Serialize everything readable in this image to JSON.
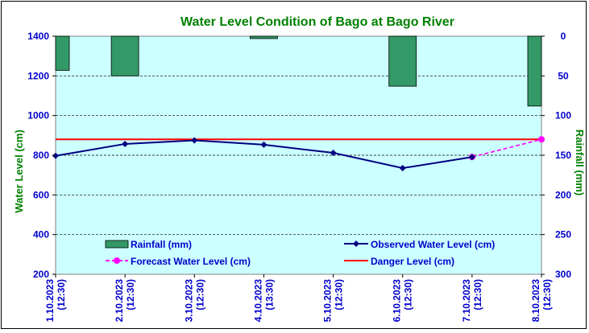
{
  "chart_data": {
    "type": "bar+line",
    "title": "Water Level Condition  of Bago at Bago River",
    "ylabel_left": "Water Level (cm)",
    "ylabel_right": "Rainfall (mm)",
    "ylim_left": [
      200,
      1400
    ],
    "yticks_left": [
      "200",
      "400",
      "600",
      "800",
      "1000",
      "1200",
      "1400"
    ],
    "ylim_right": [
      0,
      300
    ],
    "right_axis_inverted": true,
    "yticks_right": [
      "0",
      "50",
      "100",
      "150",
      "200",
      "250",
      "300"
    ],
    "grid": "horizontal dashed",
    "categories": [
      [
        "1.10.2023",
        "(12:30)"
      ],
      [
        "2.10.2023",
        "(12:30)"
      ],
      [
        "3.10.2023",
        "(12:30)"
      ],
      [
        "4.10.2023",
        "(13:30)"
      ],
      [
        "5.10.2023",
        "(12:30)"
      ],
      [
        "6.10.2023",
        "(12:30)"
      ],
      [
        "7.10.2023",
        "(12:30)"
      ],
      [
        "8.10.2023",
        "(12:30)"
      ]
    ],
    "series": [
      {
        "name": "Rainfall (mm)",
        "kind": "bar",
        "axis": "right",
        "color": "#339966",
        "values": [
          43,
          50,
          0,
          3,
          0,
          63,
          0,
          88
        ]
      },
      {
        "name": "Observed Water Level (cm)",
        "kind": "line",
        "axis": "left",
        "color": "#000080",
        "values": [
          797,
          857,
          875,
          853,
          812,
          735,
          791,
          null
        ]
      },
      {
        "name": "Forecast Water Level (cm)",
        "kind": "line-dashed",
        "axis": "left",
        "color": "#FF00FF",
        "values": [
          null,
          null,
          null,
          null,
          null,
          null,
          791,
          880
        ]
      },
      {
        "name": "Danger Level (cm)",
        "kind": "hline",
        "axis": "left",
        "color": "#FF0000",
        "value": 880
      }
    ],
    "colors": {
      "plot_background": "#CCFFFF",
      "title": "#008000",
      "left_axis_label": "#008000",
      "right_axis_label": "#008000",
      "tick_labels": "#0000CC"
    }
  }
}
